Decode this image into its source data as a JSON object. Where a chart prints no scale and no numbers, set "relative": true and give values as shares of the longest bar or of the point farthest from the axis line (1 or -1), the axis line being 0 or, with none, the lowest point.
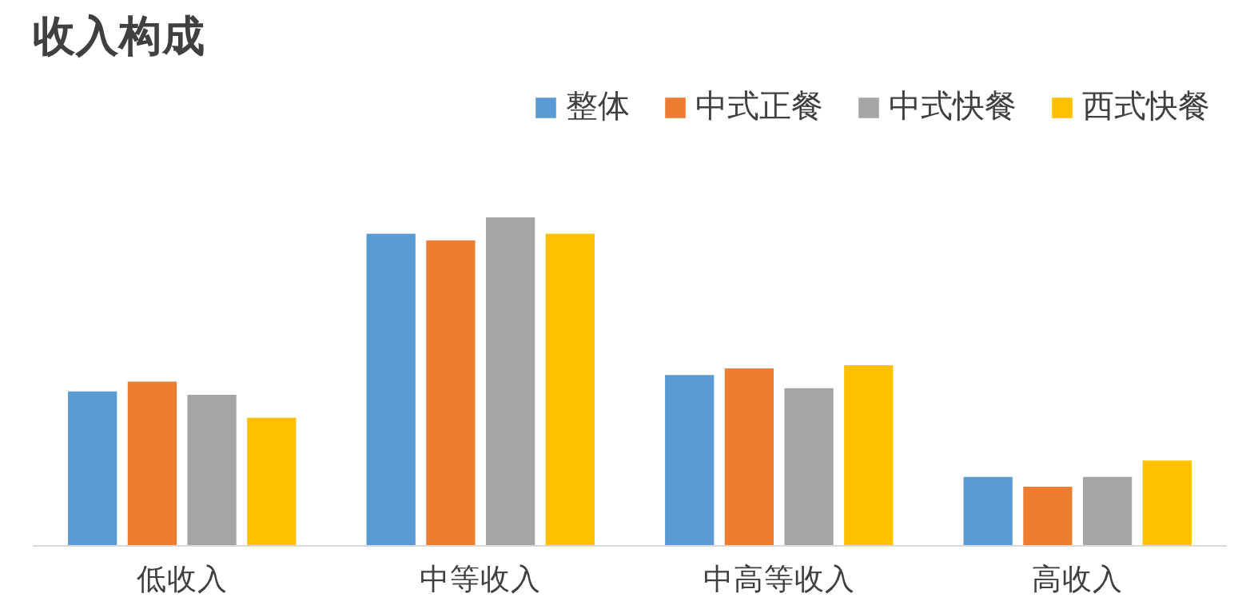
{
  "chart_data": {
    "type": "bar",
    "title": "收入构成",
    "relative": true,
    "legend": "top right",
    "grid": false,
    "categories": [
      "低收入",
      "中等收入",
      "中高等收入",
      "高收入"
    ],
    "series": [
      {
        "name": "整体",
        "color": "#5b9bd5",
        "values": [
          0.47,
          0.95,
          0.52,
          0.21
        ]
      },
      {
        "name": "中式正餐",
        "color": "#ed7d31",
        "values": [
          0.5,
          0.93,
          0.54,
          0.18
        ]
      },
      {
        "name": "中式快餐",
        "color": "#a5a5a5",
        "values": [
          0.46,
          1.0,
          0.48,
          0.21
        ]
      },
      {
        "name": "西式快餐",
        "color": "#ffc000",
        "values": [
          0.39,
          0.95,
          0.55,
          0.26
        ]
      }
    ]
  }
}
